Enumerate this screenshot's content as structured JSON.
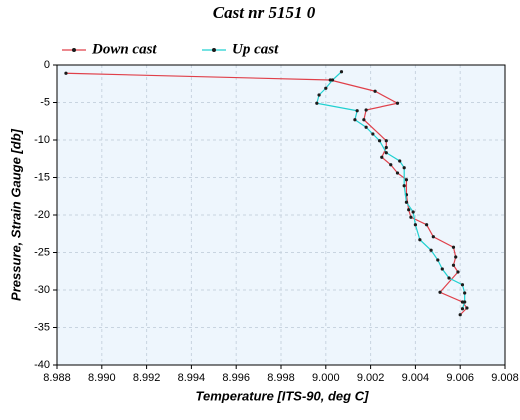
{
  "chart_data": {
    "type": "line",
    "title": "Cast nr 5151 0",
    "x_label": "Temperature [ITS-90, deg C]",
    "y_label": "Pressure, Strain Gauge [db]",
    "xlim": [
      8.988,
      9.008
    ],
    "xticks": [
      8.988,
      {
        "value": 8.99,
        "label": "8.990"
      },
      8.992,
      8.994,
      8.996,
      8.998,
      {
        "value": 9,
        "label": "9.000"
      },
      9.002,
      9.004,
      9.006,
      9.008
    ],
    "ylim": [
      -40,
      0
    ],
    "yticks": [
      0,
      -5,
      -10,
      -15,
      -20,
      -25,
      -30,
      -35,
      -40
    ],
    "grid": true,
    "legend": "top-left",
    "marker_color": "#1a1a1a",
    "plot_background": "#eef6fd",
    "series": [
      {
        "name": "Down cast",
        "color": "#e0404a",
        "x": [
          8.9884,
          9.0002,
          9.0022,
          9.0032,
          9.0018,
          9.0017,
          9.0027,
          9.0027,
          9.0025,
          9.0029,
          9.0032,
          9.0036,
          9.0036,
          9.0037,
          9.0038,
          9.0045,
          9.0048,
          9.0057,
          9.0058,
          9.0057,
          9.0059,
          9.0051,
          9.0061,
          9.0063,
          9.006
        ],
        "values": [
          -1.1,
          -2.0,
          -3.5,
          -5.1,
          -6.0,
          -7.3,
          -10.1,
          -11.0,
          -12.3,
          -13.3,
          -14.4,
          -15.3,
          -17.3,
          -19.3,
          -20.3,
          -21.3,
          -22.9,
          -24.3,
          -25.6,
          -26.7,
          -27.6,
          -30.3,
          -31.6,
          -32.4,
          -33.3
        ]
      },
      {
        "name": "Up cast",
        "color": "#20d0d0",
        "x": [
          9.0007,
          9.0003,
          9.0,
          8.9997,
          8.9996,
          9.0014,
          9.0013,
          9.0018,
          9.0021,
          9.0024,
          9.0027,
          9.0033,
          9.0035,
          9.0035,
          9.0036,
          9.0039,
          9.004,
          9.0042,
          9.0047,
          9.005,
          9.0052,
          9.0055,
          9.0061,
          9.0062,
          9.0062,
          9.0061
        ],
        "values": [
          -0.9,
          -2.0,
          -3.1,
          -4.0,
          -5.1,
          -6.1,
          -7.3,
          -8.3,
          -9.2,
          -10.1,
          -11.7,
          -12.8,
          -13.7,
          -16.1,
          -18.3,
          -19.6,
          -21.3,
          -23.3,
          -24.7,
          -26.0,
          -27.2,
          -28.4,
          -29.3,
          -30.4,
          -31.6,
          -32.5
        ]
      }
    ]
  }
}
